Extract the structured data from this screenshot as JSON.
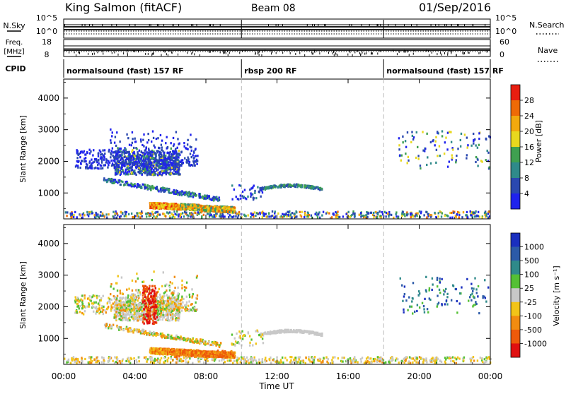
{
  "header": {
    "station": "King Salmon (fitACF)",
    "beam": "Beam 08",
    "date": "01/Sep/2016"
  },
  "status_panels": {
    "nsky_label": "N.Sky",
    "nsky_ticks": [
      "10^5",
      "10^0"
    ],
    "nsearch_label": "N.Search",
    "nsearch_ticks": [
      "10^5",
      "10^0"
    ],
    "freq_label_line1": "Freq.",
    "freq_label_line2": "[MHz]",
    "freq_ticks": [
      "18",
      "8"
    ],
    "nave_label": "Nave",
    "nave_ticks": [
      "60",
      "0"
    ],
    "cpid_label": "CPID",
    "cpid_segments": [
      {
        "label": "normalsound (fast) 157 RF",
        "start_hour": 0,
        "end_hour": 10
      },
      {
        "label": "rbsp 200 RF",
        "start_hour": 10,
        "end_hour": 18
      },
      {
        "label": "normalsound (fast) 157 RF",
        "start_hour": 18,
        "end_hour": 24
      }
    ]
  },
  "colorbars": {
    "power": {
      "title": "Power [dB]",
      "ticks": [
        "4",
        "8",
        "12",
        "16",
        "20",
        "24",
        "28"
      ],
      "colors": [
        "#1f22ee",
        "#2a48b0",
        "#2f8a8a",
        "#3fa050",
        "#e8d81e",
        "#f2a90e",
        "#ee6a06",
        "#e81e10"
      ]
    },
    "velocity": {
      "title": "Velocity [m s⁻¹]",
      "ticks": [
        "1000",
        "500",
        "100",
        "25",
        "-25",
        "-100",
        "-500",
        "-1000"
      ],
      "colors": [
        "#1a2fbf",
        "#2c5aa8",
        "#2f8a8a",
        "#54c034",
        "#c8c8c8",
        "#f2c418",
        "#f28c10",
        "#ee5a0a",
        "#e01010"
      ]
    }
  },
  "chart_data": [
    {
      "type": "heatmap",
      "title": "",
      "xlabel": "Time UT",
      "ylabel": "Slant Range [km]",
      "xlim": [
        0,
        24
      ],
      "ylim": [
        180,
        4600
      ],
      "x_ticks": [
        "00:00",
        "04:00",
        "08:00",
        "12:00",
        "16:00",
        "20:00",
        "00:00"
      ],
      "y_ticks": [
        "1000",
        "2000",
        "3000",
        "4000"
      ],
      "colorbar": "Power [dB]",
      "regions": [
        {
          "name": "near-range echoes",
          "x": [
            0,
            24
          ],
          "range_km": [
            250,
            450
          ],
          "value_db": [
            4,
            24
          ]
        },
        {
          "name": "E/F band",
          "x": [
            4.8,
            9.6
          ],
          "range_km": [
            450,
            750
          ],
          "value_db": [
            12,
            28
          ]
        },
        {
          "name": "descending band",
          "x": [
            2.2,
            8.8
          ],
          "range_km": [
            750,
            1500
          ],
          "value_db": [
            4,
            12
          ]
        },
        {
          "name": "patch cluster",
          "x": [
            2.8,
            6.5
          ],
          "range_km": [
            1600,
            2500
          ],
          "value_db": [
            4,
            20
          ]
        },
        {
          "name": "upper scatter",
          "x": [
            0.6,
            7.5
          ],
          "range_km": [
            1700,
            3300
          ],
          "value_db": [
            4,
            8
          ]
        },
        {
          "name": "rbsp arc",
          "x": [
            11.0,
            14.5
          ],
          "range_km": [
            1050,
            1300
          ],
          "value_db": [
            4,
            12
          ]
        },
        {
          "name": "late patches",
          "x": [
            18.8,
            24
          ],
          "range_km": [
            1800,
            3100
          ],
          "value_db": [
            4,
            16
          ]
        }
      ]
    },
    {
      "type": "heatmap",
      "title": "",
      "xlabel": "Time UT",
      "ylabel": "Slant Range [km]",
      "xlim": [
        0,
        24
      ],
      "ylim": [
        180,
        4600
      ],
      "x_ticks": [
        "00:00",
        "04:00",
        "08:00",
        "12:00",
        "16:00",
        "20:00",
        "00:00"
      ],
      "y_ticks": [
        "1000",
        "2000",
        "3000",
        "4000"
      ],
      "colorbar": "Velocity [m s⁻¹]",
      "regions": [
        {
          "name": "near-range echoes",
          "x": [
            0,
            24
          ],
          "range_km": [
            250,
            450
          ],
          "value_ms": [
            -100,
            25
          ]
        },
        {
          "name": "E/F band",
          "x": [
            4.8,
            9.6
          ],
          "range_km": [
            450,
            750
          ],
          "value_ms": [
            -500,
            -100
          ]
        },
        {
          "name": "descending band",
          "x": [
            2.2,
            8.8
          ],
          "range_km": [
            750,
            1500
          ],
          "value_ms": [
            -100,
            25
          ]
        },
        {
          "name": "red streak",
          "x": [
            4.4,
            5.2
          ],
          "range_km": [
            1500,
            2700
          ],
          "value_ms": [
            -1000,
            -500
          ]
        },
        {
          "name": "upper scatter",
          "x": [
            0.6,
            7.5
          ],
          "range_km": [
            1700,
            3300
          ],
          "value_ms": [
            -500,
            25
          ]
        },
        {
          "name": "rbsp arc",
          "x": [
            11.0,
            14.5
          ],
          "range_km": [
            1050,
            1300
          ],
          "value_ms": [
            -25,
            25
          ]
        },
        {
          "name": "late patches",
          "x": [
            18.8,
            24
          ],
          "range_km": [
            1800,
            3100
          ],
          "value_ms": [
            100,
            1000
          ]
        }
      ]
    }
  ]
}
